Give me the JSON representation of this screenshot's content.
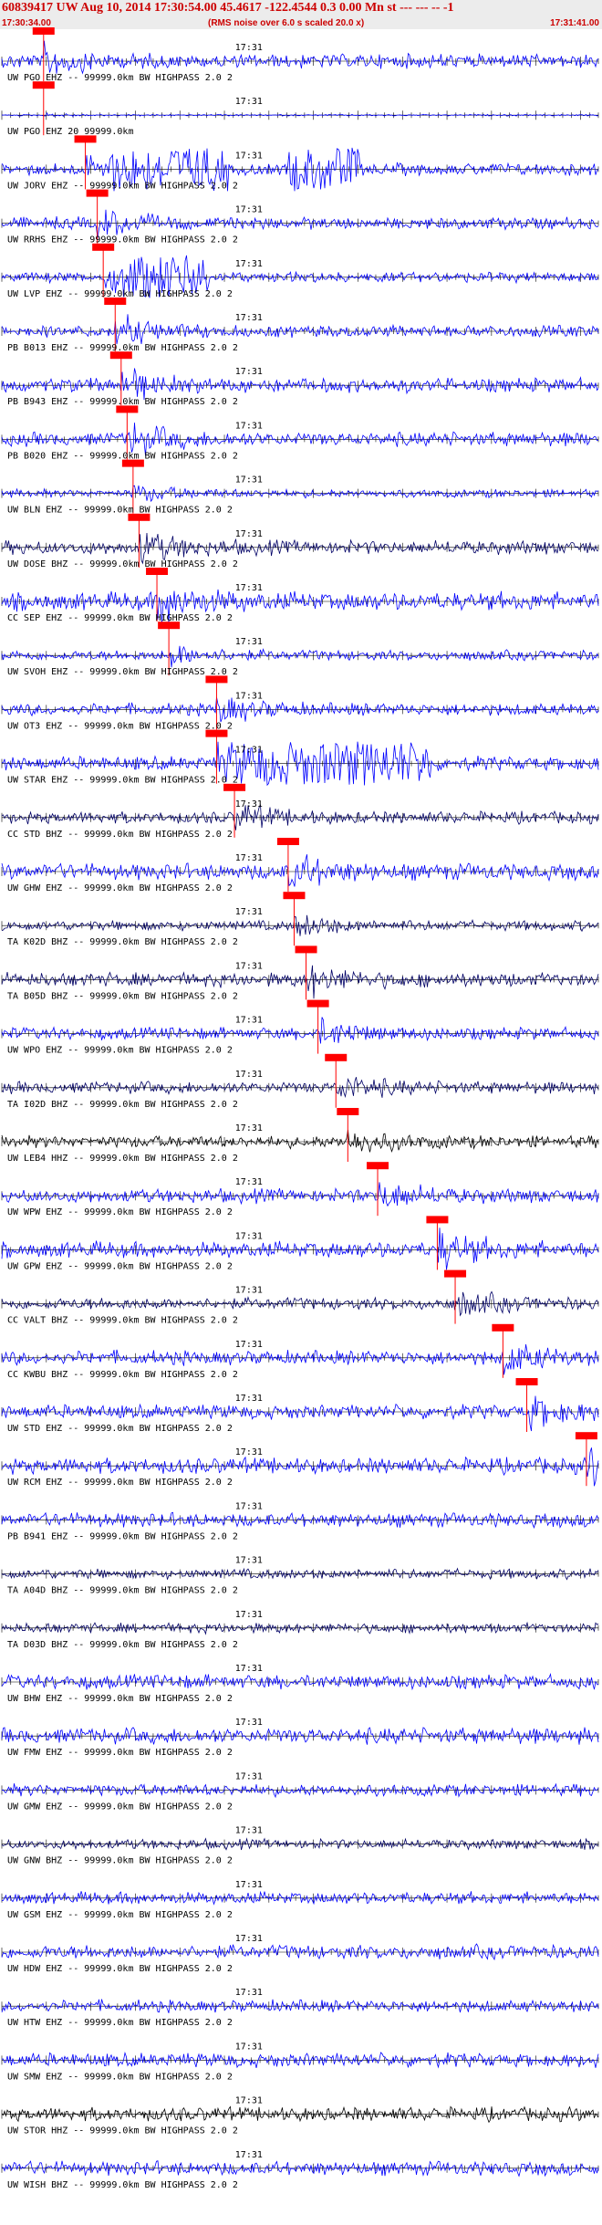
{
  "header": {
    "title": "60839417 UW Aug 10, 2014 17:30:54.00   45.4617 -122.4544  0.3 0.00 Mn st --- --- --   -1",
    "start_time": "17:30:34.00",
    "note": "(RMS noise over 6.0 s scaled 20.0 x)",
    "end_time": "17:31:41.00"
  },
  "colors": {
    "trace": "#0000ff",
    "trace_dark": "#000066",
    "trace_black": "#000000",
    "pick": "#ff0000",
    "title": "#cc0000"
  },
  "chart_data": {
    "type": "line",
    "time_range": [
      "17:30:34.00",
      "17:31:41.00"
    ],
    "minute_label": "17:31",
    "traces": [
      {
        "label": "UW PGO EHZ -- 99999.0km BW  HIGHPASS  2.0  2",
        "color": "#0000ff",
        "amp": 0.35,
        "pick": 0.07,
        "burst": null
      },
      {
        "label": "UW PGO EHZ 20 99999.0km",
        "color": "#0000ff",
        "amp": 0.04,
        "pick": 0.07,
        "burst": null
      },
      {
        "label": "UW JORV EHZ -- 99999.0km BW  HIGHPASS  2.0  2",
        "color": "#0000ff",
        "amp": 0.3,
        "pick": 0.14,
        "burst": [
          [
            0.18,
            0.38
          ],
          [
            0.48,
            0.6
          ]
        ]
      },
      {
        "label": "UW RRHS EHZ -- 99999.0km BW  HIGHPASS  2.0  2",
        "color": "#0000ff",
        "amp": 0.3,
        "pick": 0.16,
        "burst": null
      },
      {
        "label": "UW LVP EHZ -- 99999.0km BW  HIGHPASS  2.0  2",
        "color": "#0000ff",
        "amp": 0.25,
        "pick": 0.17,
        "burst": [
          [
            0.19,
            0.35
          ]
        ]
      },
      {
        "label": "PB B013 EHZ -- 99999.0km BW  HIGHPASS  2.0  2",
        "color": "#0000ff",
        "amp": 0.3,
        "pick": 0.19,
        "burst": null
      },
      {
        "label": "PB B943 EHZ -- 99999.0km BW  HIGHPASS  2.0  2",
        "color": "#0000ff",
        "amp": 0.35,
        "pick": 0.2,
        "burst": null
      },
      {
        "label": "PB B020 EHZ -- 99999.0km BW  HIGHPASS  2.0  2",
        "color": "#0000ff",
        "amp": 0.35,
        "pick": 0.21,
        "burst": null
      },
      {
        "label": "UW BLN EHZ -- 99999.0km BW  HIGHPASS  2.0  2",
        "color": "#0000ff",
        "amp": 0.2,
        "pick": 0.22,
        "burst": null
      },
      {
        "label": "UW DOSE BHZ -- 99999.0km BW  HIGHPASS  2.0  2",
        "color": "#000066",
        "amp": 0.35,
        "pick": 0.23,
        "burst": null
      },
      {
        "label": "CC SEP EHZ -- 99999.0km BW  HIGHPASS  2.0  2",
        "color": "#0000ff",
        "amp": 0.45,
        "pick": 0.26,
        "burst": null
      },
      {
        "label": "UW SVOH EHZ -- 99999.0km BW  HIGHPASS  2.0  2",
        "color": "#0000ff",
        "amp": 0.25,
        "pick": 0.28,
        "burst": null
      },
      {
        "label": "UW OT3 EHZ -- 99999.0km BW  HIGHPASS  2.0  2",
        "color": "#0000ff",
        "amp": 0.3,
        "pick": 0.36,
        "burst": null
      },
      {
        "label": "UW STAR EHZ -- 99999.0km BW  HIGHPASS  2.0  2",
        "color": "#0000ff",
        "amp": 0.35,
        "pick": 0.36,
        "burst": [
          [
            0.38,
            0.72
          ]
        ]
      },
      {
        "label": "CC STD BHZ -- 99999.0km BW  HIGHPASS  2.0  2",
        "color": "#000066",
        "amp": 0.3,
        "pick": 0.39,
        "burst": null
      },
      {
        "label": "UW GHW EHZ -- 99999.0km BW  HIGHPASS  2.0  2",
        "color": "#0000ff",
        "amp": 0.4,
        "pick": 0.48,
        "burst": null
      },
      {
        "label": "TA K02D BHZ -- 99999.0km BW  HIGHPASS  2.0  2",
        "color": "#000066",
        "amp": 0.25,
        "pick": 0.49,
        "burst": null
      },
      {
        "label": "TA B05D BHZ -- 99999.0km BW  HIGHPASS  2.0  2",
        "color": "#000066",
        "amp": 0.35,
        "pick": 0.51,
        "burst": null
      },
      {
        "label": "UW WPO EHZ -- 99999.0km BW  HIGHPASS  2.0  2",
        "color": "#0000ff",
        "amp": 0.3,
        "pick": 0.53,
        "burst": null
      },
      {
        "label": "TA I02D BHZ -- 99999.0km BW  HIGHPASS  2.0  2",
        "color": "#000066",
        "amp": 0.3,
        "pick": 0.56,
        "burst": null
      },
      {
        "label": "UW LEB4 HHZ -- 99999.0km BW  HIGHPASS  2.0  2",
        "color": "#000000",
        "amp": 0.3,
        "pick": 0.58,
        "burst": null
      },
      {
        "label": "UW WPW EHZ -- 99999.0km BW  HIGHPASS  2.0  2",
        "color": "#0000ff",
        "amp": 0.35,
        "pick": 0.63,
        "burst": null
      },
      {
        "label": "UW GPW EHZ -- 99999.0km BW  HIGHPASS  2.0  2",
        "color": "#0000ff",
        "amp": 0.4,
        "pick": 0.73,
        "burst": null
      },
      {
        "label": "CC VALT BHZ -- 99999.0km BW  HIGHPASS  2.0  2",
        "color": "#000066",
        "amp": 0.3,
        "pick": 0.76,
        "burst": null
      },
      {
        "label": "CC KWBU BHZ -- 99999.0km BW  HIGHPASS  2.0  2",
        "color": "#0000ff",
        "amp": 0.35,
        "pick": 0.84,
        "burst": null
      },
      {
        "label": "UW STD EHZ -- 99999.0km BW  HIGHPASS  2.0  2",
        "color": "#0000ff",
        "amp": 0.35,
        "pick": 0.88,
        "burst": null
      },
      {
        "label": "UW RCM EHZ -- 99999.0km BW  HIGHPASS  2.0  2",
        "color": "#0000ff",
        "amp": 0.4,
        "pick": 0.98,
        "burst": null
      },
      {
        "label": "PB B941 EHZ -- 99999.0km BW  HIGHPASS  2.0  2",
        "color": "#0000ff",
        "amp": 0.35,
        "pick": null,
        "burst": null
      },
      {
        "label": "TA A04D BHZ -- 99999.0km BW  HIGHPASS  2.0  2",
        "color": "#000066",
        "amp": 0.25,
        "pick": null,
        "burst": null
      },
      {
        "label": "TA D03D BHZ -- 99999.0km BW  HIGHPASS  2.0  2",
        "color": "#000066",
        "amp": 0.25,
        "pick": null,
        "burst": null
      },
      {
        "label": "UW BHW EHZ -- 99999.0km BW  HIGHPASS  2.0  2",
        "color": "#0000ff",
        "amp": 0.35,
        "pick": null,
        "burst": null
      },
      {
        "label": "UW FMW EHZ -- 99999.0km BW  HIGHPASS  2.0  2",
        "color": "#0000ff",
        "amp": 0.4,
        "pick": null,
        "burst": null
      },
      {
        "label": "UW GMW EHZ -- 99999.0km BW  HIGHPASS  2.0  2",
        "color": "#0000ff",
        "amp": 0.3,
        "pick": null,
        "burst": null
      },
      {
        "label": "UW GNW BHZ -- 99999.0km BW  HIGHPASS  2.0  2",
        "color": "#000066",
        "amp": 0.25,
        "pick": null,
        "burst": null
      },
      {
        "label": "UW GSM EHZ -- 99999.0km BW  HIGHPASS  2.0  2",
        "color": "#0000ff",
        "amp": 0.3,
        "pick": null,
        "burst": null
      },
      {
        "label": "UW HDW EHZ -- 99999.0km BW  HIGHPASS  2.0  2",
        "color": "#0000ff",
        "amp": 0.35,
        "pick": null,
        "burst": null
      },
      {
        "label": "UW HTW EHZ -- 99999.0km BW  HIGHPASS  2.0  2",
        "color": "#0000ff",
        "amp": 0.3,
        "pick": null,
        "burst": null
      },
      {
        "label": "UW SMW EHZ -- 99999.0km BW  HIGHPASS  2.0  2",
        "color": "#0000ff",
        "amp": 0.35,
        "pick": null,
        "burst": null
      },
      {
        "label": "UW STOR HHZ -- 99999.0km BW  HIGHPASS  2.0  2",
        "color": "#000000",
        "amp": 0.35,
        "pick": null,
        "burst": null
      },
      {
        "label": "UW WISH BHZ -- 99999.0km BW  HIGHPASS  2.0  2",
        "color": "#0000ff",
        "amp": 0.35,
        "pick": null,
        "burst": null
      }
    ]
  }
}
